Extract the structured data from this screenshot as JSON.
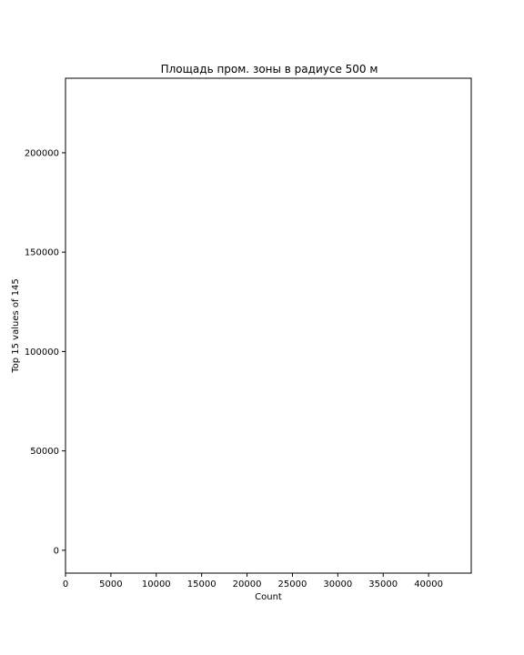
{
  "chart_data": {
    "type": "bar",
    "orientation": "horizontal",
    "title": "Площадь пром. зоны в радиусе 500 м",
    "xlabel": "Count",
    "ylabel": "Top 15 values of 145",
    "xlim": [
      0,
      44700
    ],
    "ylim": [
      -11500,
      237500
    ],
    "x_ticks": [
      0,
      5000,
      10000,
      15000,
      20000,
      25000,
      30000,
      35000,
      40000
    ],
    "x_tick_labels": [
      "0",
      "5000",
      "10000",
      "15000",
      "20000",
      "25000",
      "30000",
      "35000",
      "40000"
    ],
    "y_ticks": [
      0,
      50000,
      100000,
      150000,
      200000
    ],
    "y_tick_labels": [
      "0",
      "50000",
      "100000",
      "150000",
      "200000"
    ],
    "grid": false,
    "series": [],
    "colors": {
      "background": "#ffffff",
      "frame": "#000000",
      "text": "#000000"
    }
  }
}
